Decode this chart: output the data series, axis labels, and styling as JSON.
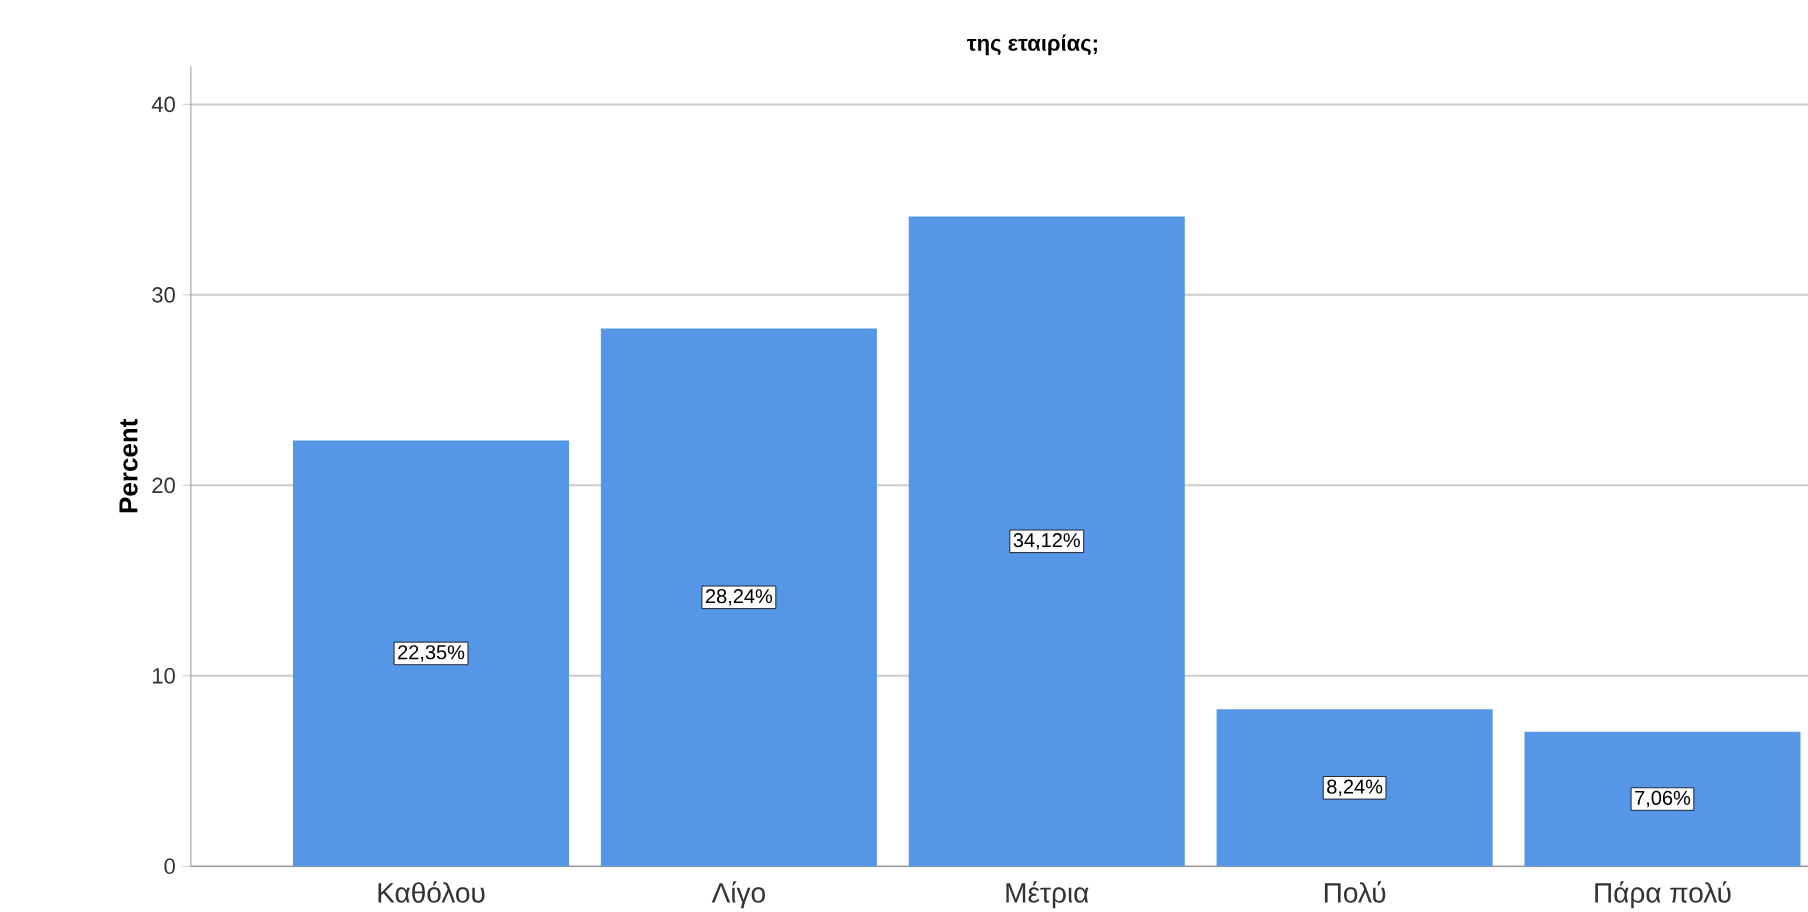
{
  "chart_data": {
    "type": "bar",
    "title": "της εταιρίας;",
    "ylabel": "Percent",
    "categories": [
      "Καθόλου",
      "Λίγο",
      "Μέτρια",
      "Πολύ",
      "Πάρα πολύ"
    ],
    "values": [
      22.35,
      28.24,
      34.12,
      8.24,
      7.06
    ],
    "value_labels": [
      "22,35%",
      "28,24%",
      "34,12%",
      "8,24%",
      "7,06%"
    ],
    "color": "#5596e6",
    "ylim": [
      0,
      42
    ],
    "yticks": [
      0,
      10,
      20,
      30,
      40
    ],
    "grid": "y"
  }
}
